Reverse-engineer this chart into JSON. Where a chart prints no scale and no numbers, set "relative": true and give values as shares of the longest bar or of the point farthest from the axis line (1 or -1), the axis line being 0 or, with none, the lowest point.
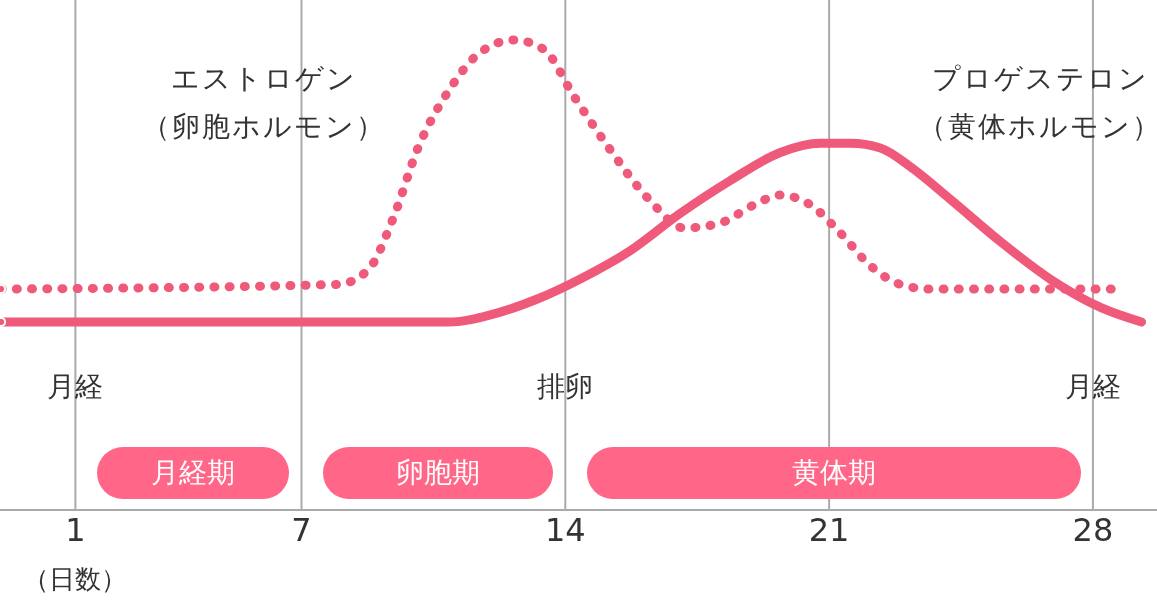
{
  "chart_data": {
    "type": "line",
    "relative": true,
    "xlabel": "（日数）",
    "xlim": [
      -1,
      29.7
    ],
    "xticks": [
      1,
      7,
      14,
      21,
      28
    ],
    "grid": "x",
    "legend": false,
    "marker": "none",
    "series": [
      {
        "name": "エストロゲン（卵胞ホルモン）",
        "color": "#ef5a7a",
        "line_style": "dashed",
        "x": [
          -0.97,
          7.96,
          8.76,
          9.43,
          10.09,
          10.89,
          11.69,
          12.63,
          13.43,
          14.23,
          15.16,
          16.23,
          17.16,
          18.09,
          19.03,
          19.69,
          20.49,
          21.29,
          22.09,
          22.89,
          23.69,
          28.63
        ],
        "values": [
          0.47,
          0.48,
          0.51,
          0.62,
          0.77,
          0.89,
          0.97,
          1.0,
          0.98,
          0.88,
          0.77,
          0.66,
          0.6,
          0.61,
          0.65,
          0.67,
          0.65,
          0.59,
          0.52,
          0.48,
          0.47,
          0.47
        ]
      },
      {
        "name": "プロゲステロン（黄体ホルモン）",
        "color": "#ef5a7a",
        "line_style": "solid",
        "x": [
          -0.97,
          10.89,
          12.23,
          13.29,
          14.36,
          15.69,
          17.03,
          18.36,
          19.69,
          20.76,
          21.56,
          22.36,
          23.16,
          24.23,
          25.56,
          26.89,
          28.23,
          29.29
        ],
        "values": [
          0.4,
          0.4,
          0.42,
          0.45,
          0.49,
          0.55,
          0.63,
          0.7,
          0.76,
          0.78,
          0.78,
          0.77,
          0.73,
          0.66,
          0.57,
          0.49,
          0.43,
          0.4
        ]
      }
    ],
    "annotations": [
      "月経",
      "排卵",
      "月経",
      "月経期",
      "卵胞期",
      "黄体期"
    ]
  }
}
